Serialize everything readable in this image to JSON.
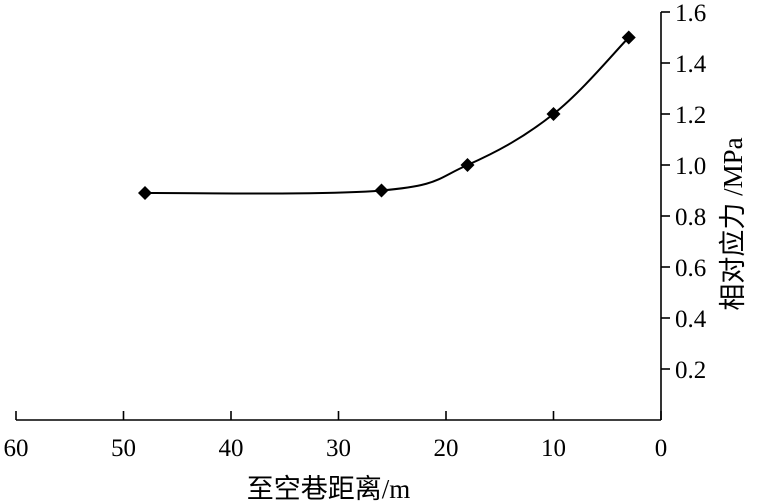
{
  "chart_data": {
    "type": "line",
    "title": "",
    "xlabel": "至空巷距离/m",
    "ylabel": "相对应力 /MPa",
    "x_reversed": true,
    "xlim": [
      60,
      0
    ],
    "ylim": [
      0,
      1.6
    ],
    "xticks": [
      60,
      50,
      40,
      30,
      20,
      10,
      0
    ],
    "xtick_labels": [
      "60",
      "50",
      "40",
      "30",
      "20",
      "10",
      "0"
    ],
    "yticks": [
      0.2,
      0.4,
      0.6,
      0.8,
      1.0,
      1.2,
      1.4,
      1.6
    ],
    "ytick_labels": [
      "0.2",
      "0.4",
      "0.6",
      "0.8",
      "1.0",
      "1.2",
      "1.4",
      "1.6"
    ],
    "y_axis_position": "right",
    "grid": false,
    "legend": "none",
    "marker": "diamond",
    "series": [
      {
        "x": [
          48,
          26,
          18,
          10,
          3
        ],
        "y": [
          0.89,
          0.9,
          1.0,
          1.2,
          1.5
        ]
      }
    ]
  }
}
